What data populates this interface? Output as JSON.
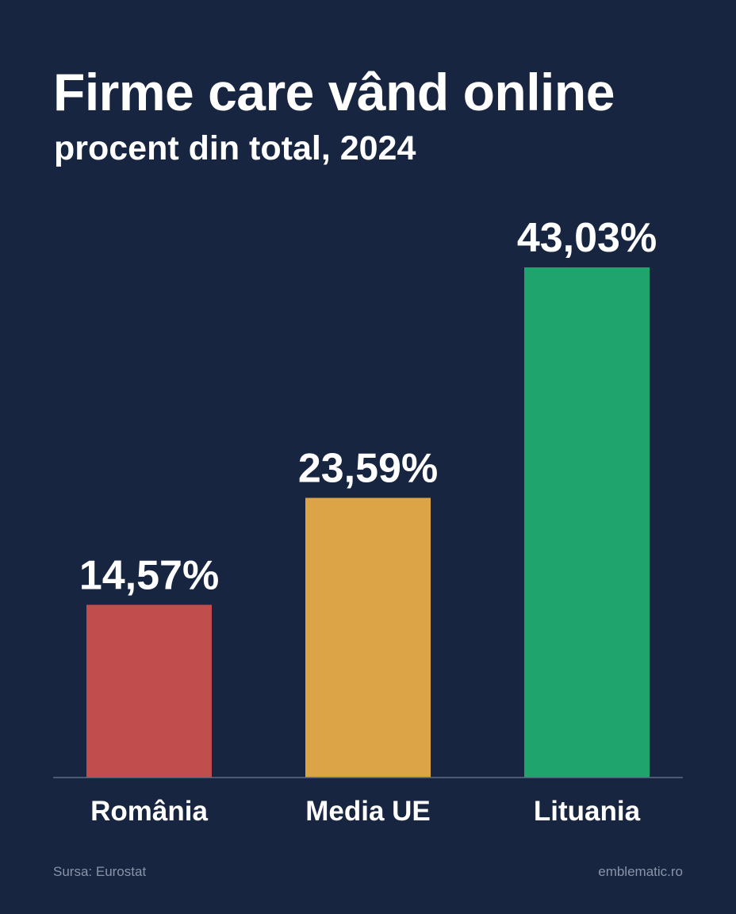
{
  "header": {
    "title": "Firme care vând online",
    "subtitle": "procent din total, 2024"
  },
  "footer": {
    "source": "Sursa: Eurostat",
    "brand": "emblematic.ro"
  },
  "chart_data": {
    "type": "bar",
    "title": "Firme care vând online",
    "subtitle": "procent din total, 2024",
    "categories": [
      "România",
      "Media UE",
      "Lituania"
    ],
    "values": [
      14.57,
      23.59,
      43.03
    ],
    "value_labels": [
      "14,57%",
      "23,59%",
      "43,03%"
    ],
    "colors": [
      "#c14d4d",
      "#dca347",
      "#1fa46e"
    ],
    "ylim": [
      0,
      50
    ],
    "grid": false,
    "legend": "none",
    "xlabel": "",
    "ylabel": ""
  }
}
